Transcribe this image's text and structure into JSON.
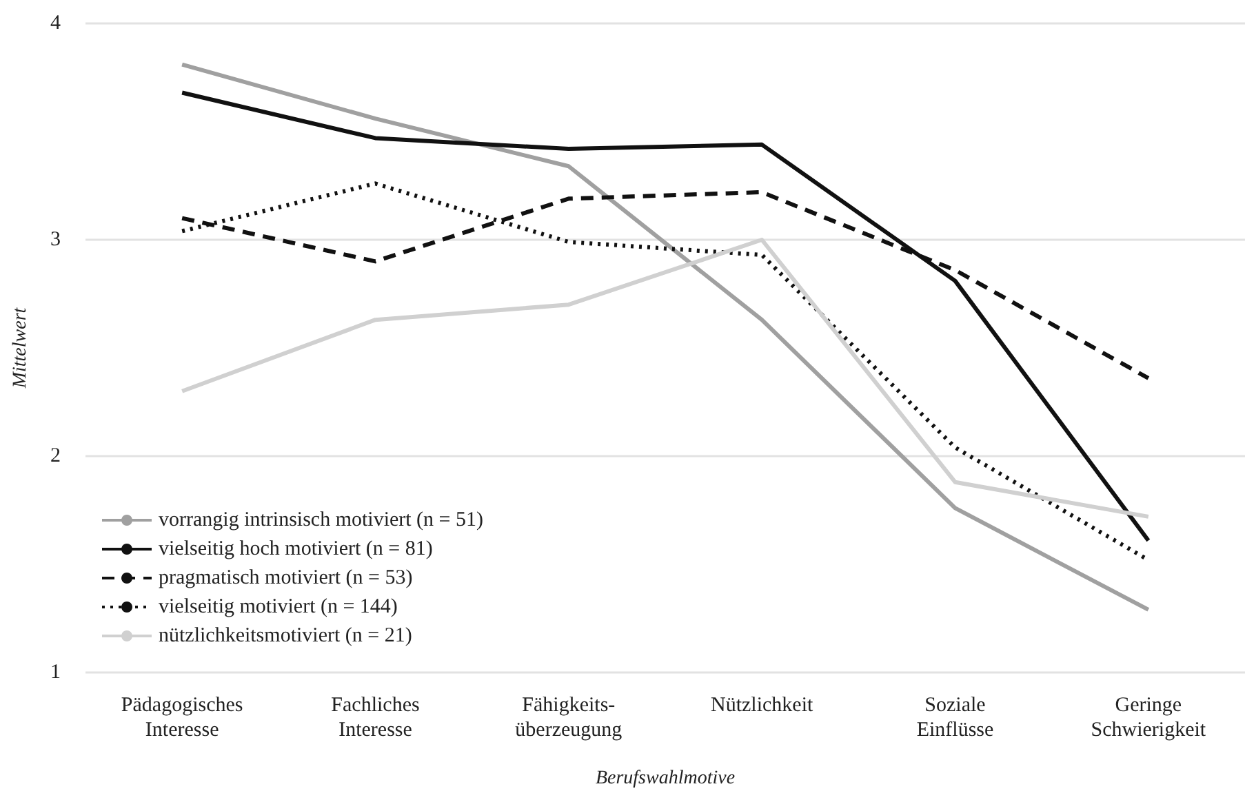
{
  "chart_data": {
    "type": "line",
    "xlabel": "Berufswahlmotive",
    "ylabel": "Mittelwert",
    "categories": [
      "Pädagogisches\nInteresse",
      "Fachliches\nInteresse",
      "Fähigkeits-\nüberzeugung",
      "Nützlichkeit",
      "Soziale\nEinflüsse",
      "Geringe\nSchwierigkeit"
    ],
    "series": [
      {
        "name": "vorrangig intrinsisch motiviert (n = 51)",
        "color": "#a0a0a0",
        "line_style": "solid",
        "values": [
          3.81,
          3.56,
          3.34,
          2.63,
          1.76,
          1.29
        ]
      },
      {
        "name": "vielseitig hoch motiviert (n = 81)",
        "color": "#111111",
        "line_style": "solid",
        "values": [
          3.68,
          3.47,
          3.42,
          3.44,
          2.81,
          1.61
        ]
      },
      {
        "name": "pragmatisch motiviert (n = 53)",
        "color": "#111111",
        "line_style": "dashed",
        "values": [
          3.1,
          2.9,
          3.19,
          3.22,
          2.86,
          2.36
        ]
      },
      {
        "name": "vielseitig motiviert (n = 144)",
        "color": "#111111",
        "line_style": "dotted",
        "values": [
          3.04,
          3.26,
          2.99,
          2.93,
          2.04,
          1.52
        ]
      },
      {
        "name": "nützlichkeitsmotiviert (n = 21)",
        "color": "#d0d0d0",
        "line_style": "solid",
        "values": [
          2.3,
          2.63,
          2.7,
          3.0,
          1.88,
          1.72
        ]
      }
    ],
    "ylim": [
      1,
      4
    ],
    "yticks": [
      1,
      2,
      3,
      4
    ],
    "grid": "y",
    "legend": "bottom left",
    "marker": "none"
  }
}
